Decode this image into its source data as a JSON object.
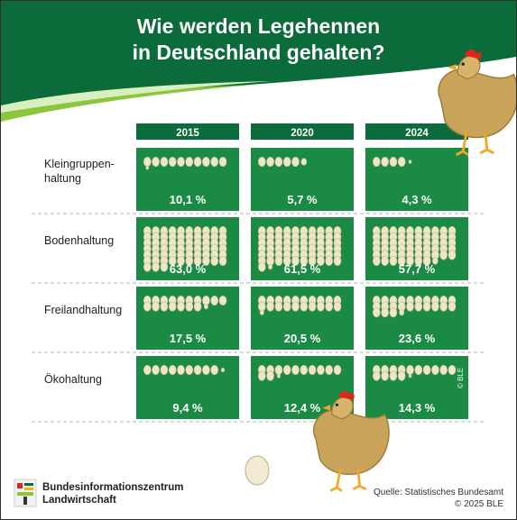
{
  "header": {
    "title_line1": "Wie werden Legehennen",
    "title_line2": "in Deutschland gehalten?"
  },
  "colors": {
    "green_dark": "#0c6b3a",
    "green_cell": "#1a8a44",
    "egg": "#efe6c8"
  },
  "chart_data": {
    "type": "table",
    "columns": [
      "2015",
      "2020",
      "2024"
    ],
    "rows": [
      {
        "category": "Kleingruppen-\nhaltung",
        "labels": [
          "10,1 %",
          "5,7 %",
          "4,3 %"
        ],
        "values": [
          10.1,
          5.7,
          4.3
        ]
      },
      {
        "category": "Bodenhaltung",
        "labels": [
          "63,0 %",
          "61,5 %",
          "57,7 %"
        ],
        "values": [
          63.0,
          61.5,
          57.7
        ]
      },
      {
        "category": "Freilandhaltung",
        "labels": [
          "17,5 %",
          "20,5 %",
          "23,6 %"
        ],
        "values": [
          17.5,
          20.5,
          23.6
        ]
      },
      {
        "category": "Ökohaltung",
        "labels": [
          "9,4 %",
          "12,4 %",
          "14,3 %"
        ],
        "values": [
          9.4,
          12.4,
          14.3
        ]
      }
    ],
    "unit": "%"
  },
  "footer": {
    "source_line1": "Quelle: Statistisches Bundesamt",
    "source_line2": "© 2025 BLE",
    "brand_line1": "Bundesinformationszentrum",
    "brand_line2": "Landwirtschaft",
    "watermark": "© BLE"
  }
}
